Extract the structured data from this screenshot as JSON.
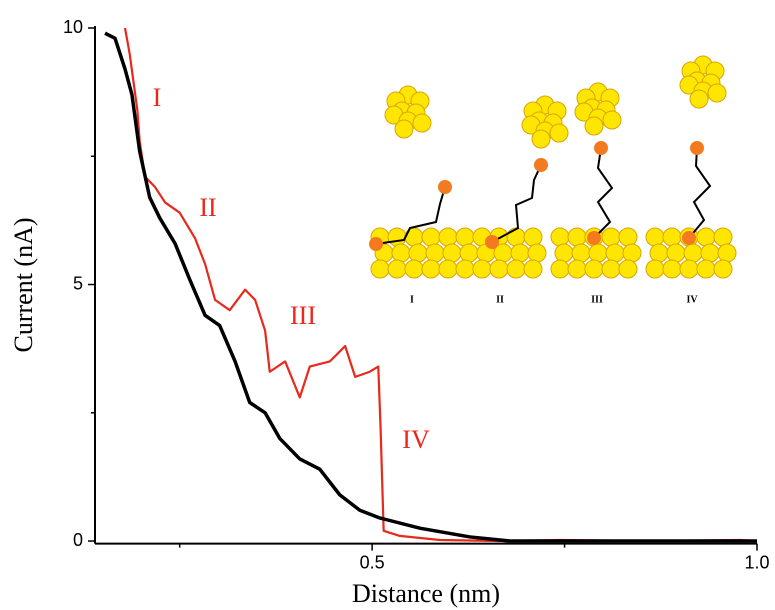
{
  "chart_data": {
    "type": "line",
    "xlabel": "Distance (nm)",
    "ylabel": "Current (nA)",
    "xlim": [
      0.14,
      1.0
    ],
    "ylim": [
      -0.05,
      10
    ],
    "xticks": [
      0.5,
      {
        "value": 1.0,
        "label": "1.0"
      }
    ],
    "xminorticks": [
      0.25,
      0.75
    ],
    "yticks": [
      0,
      5,
      10
    ],
    "yminorticks": [
      2.5,
      7.5
    ],
    "annotations": [
      "I",
      "II",
      "III",
      "IV"
    ],
    "inset_labels": [
      "I",
      "II",
      "III",
      "IV"
    ],
    "series": [
      {
        "color": "#e8281a",
        "x": [
          0.179,
          0.185,
          0.195,
          0.198,
          0.205,
          0.218,
          0.231,
          0.25,
          0.27,
          0.283,
          0.296,
          0.315,
          0.335,
          0.348,
          0.361,
          0.367,
          0.387,
          0.406,
          0.419,
          0.445,
          0.465,
          0.478,
          0.497,
          0.508,
          0.511,
          0.515,
          0.536,
          0.588,
          0.666,
          0.744,
          0.861,
          0.978,
          1.0
        ],
        "values": [
          10,
          9.5,
          8.4,
          7.8,
          7.1,
          6.9,
          6.6,
          6.4,
          5.9,
          5.4,
          4.7,
          4.5,
          4.9,
          4.7,
          4.1,
          3.3,
          3.5,
          2.8,
          3.4,
          3.5,
          3.8,
          3.2,
          3.3,
          3.4,
          2.2,
          0.2,
          0.1,
          0.02,
          0,
          0.02,
          0,
          0.02,
          0
        ]
      },
      {
        "color": "#000000",
        "x": [
          0.153,
          0.166,
          0.179,
          0.188,
          0.198,
          0.211,
          0.224,
          0.244,
          0.263,
          0.283,
          0.302,
          0.322,
          0.341,
          0.361,
          0.38,
          0.406,
          0.432,
          0.458,
          0.484,
          0.51,
          0.562,
          0.627,
          0.679,
          1.0
        ],
        "values": [
          9.9,
          9.8,
          9.2,
          8.7,
          7.6,
          6.7,
          6.3,
          5.8,
          5.1,
          4.4,
          4.2,
          3.5,
          2.7,
          2.5,
          2.0,
          1.6,
          1.4,
          0.9,
          0.6,
          0.45,
          0.25,
          0.08,
          0,
          0
        ]
      }
    ]
  }
}
